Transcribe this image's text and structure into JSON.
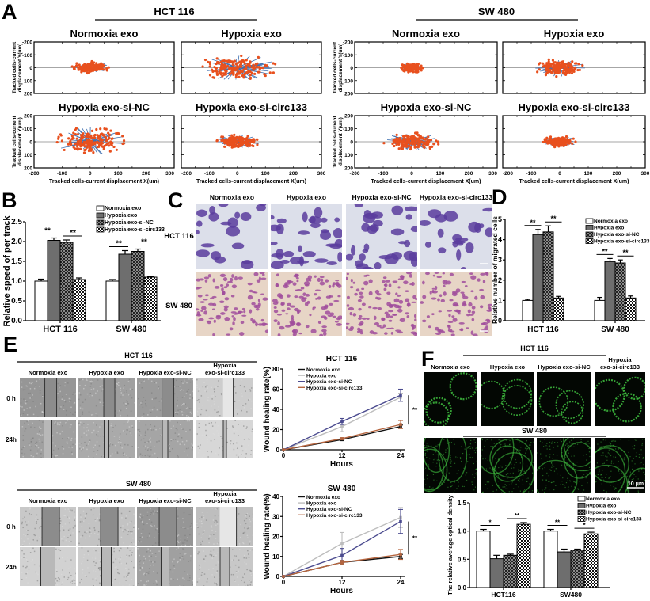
{
  "labels": {
    "A": "A",
    "B": "B",
    "C": "C",
    "D": "D",
    "E": "E",
    "F": "F"
  },
  "colors": {
    "track_endpoint": "#e8501e",
    "track_line": "#3d6fb0",
    "bar_fills": [
      "#ffffff",
      "#6e6e6e",
      "dark-checker",
      "light-checker"
    ],
    "line_series": [
      "#111111",
      "#bdbdbd",
      "#4b4b8f",
      "#b5653f"
    ],
    "crystal_violet_hct": "#5a3d9e",
    "crystal_violet_sw": "#a04e9c",
    "immunofluorescence": "#3fbf3f"
  },
  "panel_a": {
    "cell_lines": [
      "HCT 116",
      "SW 480"
    ],
    "plot_titles": [
      [
        "Normoxia exo",
        "Hypoxia exo",
        "Hypoxia exo-si-NC",
        "Hypoxia exo-si-circ133"
      ],
      [
        "Normoxia exo",
        "Hypoxia exo",
        "Hypoxia exo-si-NC",
        "Hypoxia exo-si-circ133"
      ]
    ],
    "x_label": "Tracked cells-current displacement X(um)",
    "y_label_1": "Tracked cells-current",
    "y_label_2": "displacement Y(um)",
    "x_ticks": [
      "-200",
      "-100",
      "0",
      "100",
      "200",
      "300"
    ],
    "y_ticks": [
      "-200",
      "-100",
      "0",
      "100",
      "200"
    ]
  },
  "panel_c": {
    "columns": [
      "Normoxia exo",
      "Hypoxia exo",
      "Hypoxia exo-si-NC",
      "Hypoxia exo-si-circ133"
    ],
    "rows": [
      "HCT 116",
      "SW 480"
    ]
  },
  "panel_e": {
    "sections": [
      "HCT 116",
      "SW 480"
    ],
    "columns": [
      "Normoxia exo",
      "Hypoxia exo",
      "Hypoxia exo-si-NC"
    ],
    "column4": [
      "Hypoxia",
      "exo-si-circ133"
    ],
    "rows": [
      "0 h",
      "24h"
    ]
  },
  "panel_f": {
    "sections": [
      "HCT 116",
      "SW 480"
    ],
    "columns": [
      "Normoxia exo",
      "Hypoxia exo",
      "Hypoxia exo-si-NC"
    ],
    "column4": [
      "Hypoxia",
      "exo-si-circ133"
    ],
    "scale_bar": "10 μm"
  },
  "chart_data": [
    {
      "type": "scatter",
      "description_type": "cell track plots",
      "xlabel": "Tracked cells-current displacement X(um)",
      "ylabel": "Tracked cells-current displacement Y(um)",
      "xlim": [
        -200,
        300
      ],
      "ylim": [
        -200,
        200
      ]
    },
    {
      "type": "bar",
      "ylabel": "Relative speed of per track",
      "categories": [
        "HCT 116",
        "SW 480"
      ],
      "ylim": [
        0,
        2.5
      ],
      "yticks": [
        "0.0",
        "0.5",
        "1.0",
        "1.5",
        "2.0",
        "2.5"
      ],
      "legend": "top-right",
      "series": [
        {
          "name": "Normoxia exo",
          "values": [
            1.0,
            1.0
          ],
          "errors": [
            0.05,
            0.04
          ]
        },
        {
          "name": "Hypoxia exo",
          "values": [
            2.03,
            1.68
          ],
          "errors": [
            0.06,
            0.09
          ]
        },
        {
          "name": "Hypoxia exo-si-NC",
          "values": [
            1.98,
            1.75
          ],
          "errors": [
            0.06,
            0.06
          ]
        },
        {
          "name": "Hypoxia exo-si-circ133",
          "values": [
            1.04,
            1.1
          ],
          "errors": [
            0.04,
            0.02
          ]
        }
      ],
      "significance": [
        [
          "**",
          "**"
        ],
        [
          "**",
          "**"
        ]
      ]
    },
    {
      "type": "bar",
      "ylabel": "Relative number of migrated cells",
      "categories": [
        "HCT 116",
        "SW 480"
      ],
      "ylim": [
        0,
        5
      ],
      "yticks": [
        "0",
        "1",
        "2",
        "3",
        "4",
        "5"
      ],
      "legend": "top-right",
      "series": [
        {
          "name": "Normoxia exo",
          "values": [
            1.0,
            1.0
          ],
          "errors": [
            0.05,
            0.15
          ]
        },
        {
          "name": "Hypoxia exo",
          "values": [
            4.25,
            2.92
          ],
          "errors": [
            0.25,
            0.15
          ]
        },
        {
          "name": "Hypoxia exo-si-NC",
          "values": [
            4.38,
            2.85
          ],
          "errors": [
            0.3,
            0.15
          ]
        },
        {
          "name": "Hypoxia exo-si-circ133",
          "values": [
            1.12,
            1.12
          ],
          "errors": [
            0.08,
            0.1
          ]
        }
      ],
      "significance": [
        [
          "**",
          "**"
        ],
        [
          "**",
          "**"
        ]
      ]
    },
    {
      "type": "line",
      "title": "HCT 116",
      "xlabel": "Hours",
      "ylabel": "Wound healing rate(%)",
      "x": [
        0,
        12,
        24
      ],
      "xticks": [
        "0",
        "12",
        "24"
      ],
      "ylim": [
        0,
        80
      ],
      "yticks": [
        "0",
        "20",
        "40",
        "60",
        "80"
      ],
      "legend": "top-left",
      "series": [
        {
          "name": "Normoxia exo",
          "values": [
            0,
            10,
            23
          ],
          "errors": [
            0,
            1,
            1.5
          ]
        },
        {
          "name": "Hypoxia exo",
          "values": [
            0,
            23,
            52
          ],
          "errors": [
            0,
            5,
            4
          ]
        },
        {
          "name": "Hypoxia exo-si-NC",
          "values": [
            0,
            28,
            54
          ],
          "errors": [
            0,
            3,
            6
          ]
        },
        {
          "name": "Hypoxia exo-si-circ133",
          "values": [
            0,
            11,
            25
          ],
          "errors": [
            0,
            1,
            4
          ]
        }
      ],
      "significance": "**"
    },
    {
      "type": "line",
      "title": "SW 480",
      "xlabel": "Hours",
      "ylabel": "Wound healing rate(%)",
      "x": [
        0,
        12,
        24
      ],
      "xticks": [
        "0",
        "12",
        "24"
      ],
      "ylim": [
        0,
        40
      ],
      "yticks": [
        "0",
        "10",
        "20",
        "30",
        "40"
      ],
      "legend": "top-left",
      "series": [
        {
          "name": "Normoxia exo",
          "values": [
            0,
            7,
            10
          ],
          "errors": [
            0,
            1,
            1
          ]
        },
        {
          "name": "Hypoxia exo",
          "values": [
            0,
            16.5,
            29.5
          ],
          "errors": [
            0,
            5.5,
            5
          ]
        },
        {
          "name": "Hypoxia exo-si-NC",
          "values": [
            0,
            10.5,
            27.5
          ],
          "errors": [
            0,
            3.5,
            6
          ]
        },
        {
          "name": "Hypoxia exo-si-circ133",
          "values": [
            0,
            7,
            11
          ],
          "errors": [
            0,
            1,
            2.5
          ]
        }
      ],
      "significance": "**"
    },
    {
      "type": "bar",
      "ylabel": "The relative average optical density",
      "categories": [
        "HCT116",
        "SW480"
      ],
      "ylim": [
        0,
        1.5
      ],
      "yticks": [
        "0.0",
        "0.5",
        "1.0",
        "1.5"
      ],
      "legend": "top-right",
      "series": [
        {
          "name": "Normoxia exo",
          "values": [
            1.0,
            1.0
          ],
          "errors": [
            0.03,
            0.03
          ]
        },
        {
          "name": "Hypoxia exo",
          "values": [
            0.51,
            0.63
          ],
          "errors": [
            0.06,
            0.05
          ]
        },
        {
          "name": "Hypoxia exo-si-NC",
          "values": [
            0.57,
            0.66
          ],
          "errors": [
            0.02,
            0.02
          ]
        },
        {
          "name": "Hypoxia exo-si-circ133",
          "values": [
            1.12,
            0.95
          ],
          "errors": [
            0.03,
            0.03
          ]
        }
      ],
      "significance": [
        [
          "*",
          "**"
        ],
        [
          "**",
          "*"
        ]
      ]
    }
  ]
}
